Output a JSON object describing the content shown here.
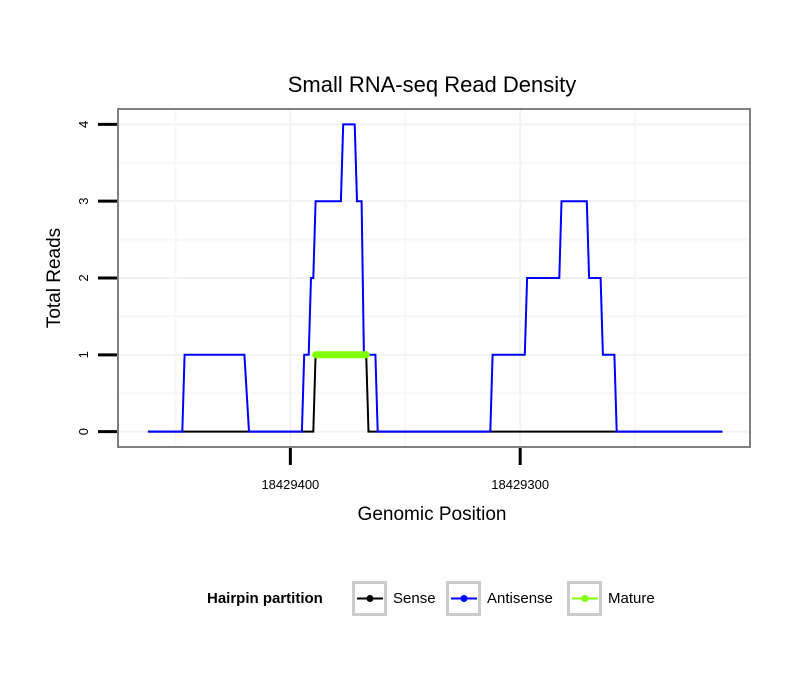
{
  "chart_data": {
    "type": "line",
    "title": "Small RNA-seq Read Density",
    "xlabel": "Genomic Position",
    "ylabel": "Total Reads",
    "xlim": [
      18429475,
      18429200
    ],
    "ylim": [
      -0.2,
      4.2
    ],
    "x_reversed": true,
    "x_ticks": [
      18429400,
      18429300
    ],
    "x_tick_labels": [
      "18429400",
      "18429300"
    ],
    "y_ticks": [
      0,
      1,
      2,
      3,
      4
    ],
    "y_tick_labels": [
      "0",
      "1",
      "2",
      "3",
      "4"
    ],
    "grid": true,
    "legend": {
      "title": "Hairpin partition",
      "position": "bottom",
      "entries": [
        {
          "label": "Sense",
          "color": "#000000"
        },
        {
          "label": "Antisense",
          "color": "#0000ff"
        },
        {
          "label": "Mature",
          "color": "#80ff00"
        }
      ]
    },
    "series": [
      {
        "name": "Sense",
        "color": "#000000",
        "points": [
          [
            18429462,
            0
          ],
          [
            18429390,
            0
          ],
          [
            18429389,
            1
          ],
          [
            18429367,
            1
          ],
          [
            18429366,
            0
          ],
          [
            18429212,
            0
          ]
        ]
      },
      {
        "name": "Antisense",
        "color": "#0000ff",
        "points": [
          [
            18429462,
            0
          ],
          [
            18429447,
            0
          ],
          [
            18429446,
            1
          ],
          [
            18429420,
            1
          ],
          [
            18429418,
            0
          ],
          [
            18429395,
            0
          ],
          [
            18429394,
            1
          ],
          [
            18429392,
            1
          ],
          [
            18429391,
            2
          ],
          [
            18429390,
            2
          ],
          [
            18429389,
            3
          ],
          [
            18429378,
            3
          ],
          [
            18429377,
            4
          ],
          [
            18429372,
            4
          ],
          [
            18429371,
            3
          ],
          [
            18429369,
            3
          ],
          [
            18429368,
            1
          ],
          [
            18429363,
            1
          ],
          [
            18429362,
            0
          ],
          [
            18429313,
            0
          ],
          [
            18429312,
            1
          ],
          [
            18429298,
            1
          ],
          [
            18429297,
            2
          ],
          [
            18429283,
            2
          ],
          [
            18429282,
            3
          ],
          [
            18429271,
            3
          ],
          [
            18429270,
            2
          ],
          [
            18429265,
            2
          ],
          [
            18429264,
            1
          ],
          [
            18429259,
            1
          ],
          [
            18429258,
            0
          ],
          [
            18429212,
            0
          ]
        ]
      },
      {
        "name": "Mature",
        "color": "#80ff00",
        "points": [
          [
            18429389,
            1
          ],
          [
            18429367,
            1
          ]
        ]
      }
    ]
  }
}
